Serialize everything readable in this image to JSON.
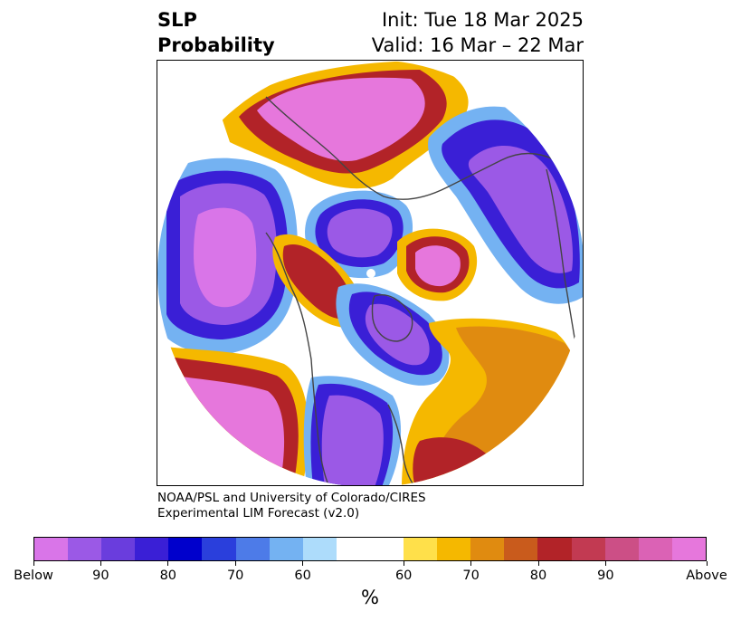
{
  "title": {
    "left_line1": "SLP",
    "left_line2": "Probability",
    "right_line1": "Init: Tue 18 Mar 2025",
    "right_line2": "Valid: 16 Mar – 22 Mar"
  },
  "credit": {
    "line1": "NOAA/PSL and University of Colorado/CIRES",
    "line2": "Experimental LIM Forecast (v2.0)"
  },
  "colorbar": {
    "colors": [
      "#d975e8",
      "#9b59e6",
      "#6a3ddd",
      "#3a1fd6",
      "#0000cc",
      "#2a3fdc",
      "#4d7be8",
      "#74b2f2",
      "#addcfb",
      "#ffffff",
      "#ffffff",
      "#ffe04a",
      "#f5b800",
      "#e08b10",
      "#c95b1c",
      "#b22328",
      "#c23a52",
      "#cc4f86",
      "#db62b5",
      "#e677dc"
    ],
    "tick_labels": [
      "Below",
      "90",
      "80",
      "70",
      "60",
      "60",
      "70",
      "80",
      "90",
      "Above"
    ],
    "unit": "%"
  },
  "map_fills": {
    "below_deep": "#d975e8",
    "below_90": "#9b59e6",
    "below_80": "#3a1fd6",
    "below_70": "#2a3fdc",
    "below_60": "#74b2f2",
    "below_50": "#addcfb",
    "above_50": "#ffe04a",
    "above_60": "#f5b800",
    "above_70": "#e08b10",
    "above_80": "#b22328",
    "above_90": "#cc4f86",
    "above_deep": "#e677dc",
    "coast": "#444444"
  }
}
